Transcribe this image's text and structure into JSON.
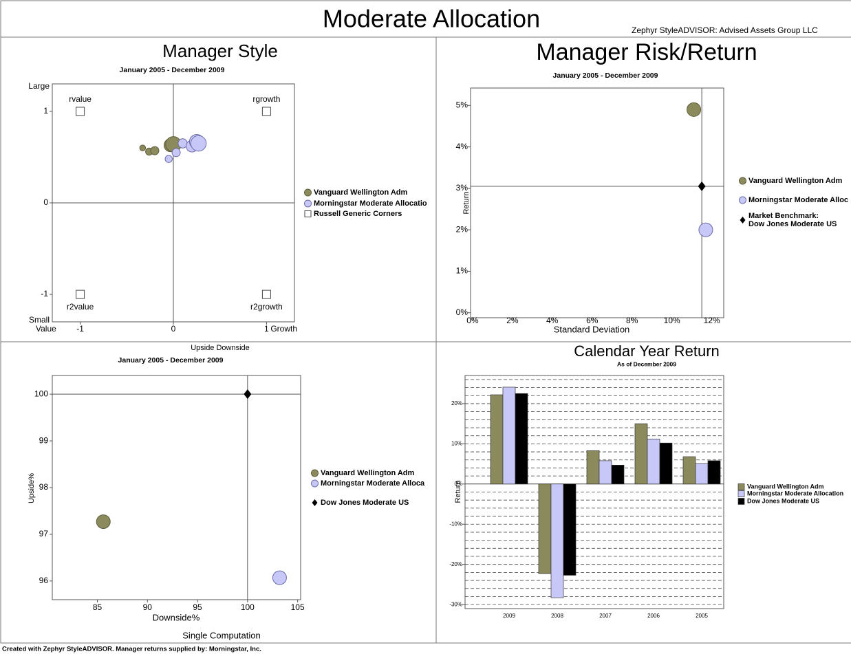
{
  "page": {
    "title": "Moderate Allocation",
    "subtitle": "Zephyr StyleADVISOR: Advised Assets Group LLC",
    "footer": "Created with Zephyr StyleADVISOR. Manager returns supplied by: Morningstar, Inc."
  },
  "chart_data": [
    {
      "type": "scatter",
      "title": "Manager Style",
      "subtitle": "January 2005 - December 2009",
      "xlim": [
        -1.3,
        1.3
      ],
      "ylim": [
        -1.3,
        1.3
      ],
      "xticks": [
        -1,
        0,
        1
      ],
      "yticks": [
        -1,
        0,
        1
      ],
      "origin_lines": true,
      "axis_labels": {
        "top": "Large",
        "bottom": "Small",
        "left": "Value",
        "right": "Growth"
      },
      "series": [
        {
          "name": "Vanguard Wellington Adm",
          "color": "#8a8a5c",
          "marker": "circle",
          "x": [
            -0.33,
            -0.26,
            -0.2,
            -0.03,
            0.0
          ],
          "values": [
            0.6,
            0.56,
            0.57,
            0.63,
            0.64
          ],
          "sizes": [
            2,
            3,
            4,
            10,
            14
          ]
        },
        {
          "name": "Morningstar Moderate Allocatio",
          "color": "#c8c8f8",
          "marker": "circle",
          "x": [
            -0.05,
            0.03,
            0.1,
            0.2,
            0.25,
            0.27
          ],
          "values": [
            0.48,
            0.55,
            0.65,
            0.62,
            0.67,
            0.65
          ],
          "sizes": [
            3,
            4,
            5,
            8,
            12,
            14
          ]
        },
        {
          "name": "Russell Generic Corners",
          "color": "#ffffff",
          "marker": "square",
          "x": [
            -1,
            1,
            -1,
            1
          ],
          "values": [
            1,
            1,
            -1,
            -1
          ],
          "labels": [
            "rvalue",
            "rgrowth",
            "r2value",
            "r2growth"
          ]
        }
      ]
    },
    {
      "type": "scatter",
      "title": "Manager Risk/Return",
      "subtitle": "January 2005 - December 2009",
      "xlabel": "Standard Deviation",
      "ylabel": "Return",
      "legend_heading": "Market Benchmark:",
      "xlim": [
        -0.1,
        12.6
      ],
      "ylim": [
        -0.12,
        5.42
      ],
      "xticks": [
        {
          "value": 0,
          "label": "0%"
        },
        {
          "value": 2,
          "label": "2%"
        },
        {
          "value": 4,
          "label": "4%"
        },
        {
          "value": 6,
          "label": "6%"
        },
        {
          "value": 8,
          "label": "8%"
        },
        {
          "value": 10,
          "label": "10%"
        },
        {
          "value": 12,
          "label": "12%"
        }
      ],
      "yticks": [
        {
          "value": 0,
          "label": "0%"
        },
        {
          "value": 1,
          "label": "1%"
        },
        {
          "value": 2,
          "label": "2%"
        },
        {
          "value": 3,
          "label": "3%"
        },
        {
          "value": 4,
          "label": "4%"
        },
        {
          "value": 5,
          "label": "5%"
        }
      ],
      "series": [
        {
          "name": "Vanguard Wellington Adm",
          "color": "#8a8a5c",
          "marker": "circle",
          "x": [
            11.1
          ],
          "values": [
            4.9
          ]
        },
        {
          "name": "Morningstar Moderate Alloc",
          "color": "#c8c8f8",
          "marker": "circle",
          "x": [
            11.7
          ],
          "values": [
            2.0
          ]
        },
        {
          "name": "Dow Jones Moderate US",
          "color": "#000000",
          "marker": "diamond",
          "crosshair": true,
          "x": [
            11.5
          ],
          "values": [
            3.05
          ]
        }
      ]
    },
    {
      "type": "scatter",
      "title": "Upside Downside",
      "subtitle": "January 2005 - December 2009",
      "xlabel": "Downside%",
      "ylabel": "Upside%",
      "note": "Single Computation",
      "xlim": [
        80.5,
        105.3
      ],
      "ylim": [
        95.6,
        100.4
      ],
      "xticks": [
        85,
        90,
        95,
        100,
        105
      ],
      "yticks": [
        96,
        97,
        98,
        99,
        100
      ],
      "series": [
        {
          "name": "Vanguard Wellington Adm",
          "color": "#8a8a5c",
          "marker": "circle",
          "x": [
            85.6
          ],
          "values": [
            97.27
          ]
        },
        {
          "name": "Morningstar Moderate Alloca",
          "color": "#c8c8f8",
          "marker": "circle",
          "x": [
            103.2
          ],
          "values": [
            96.07
          ]
        },
        {
          "name": "Dow Jones Moderate US",
          "color": "#000000",
          "marker": "diamond",
          "crosshair": true,
          "x": [
            100
          ],
          "values": [
            100
          ]
        }
      ]
    },
    {
      "type": "bar",
      "title": "Calendar Year Return",
      "subtitle": "As of December 2009",
      "ylabel": "Return",
      "categories": [
        "2009",
        "2008",
        "2007",
        "2006",
        "2005"
      ],
      "ylim": [
        -31,
        27
      ],
      "yticks": [
        {
          "value": -30,
          "label": "-30%"
        },
        {
          "value": -20,
          "label": "-20%"
        },
        {
          "value": -10,
          "label": "-10%"
        },
        {
          "value": 0,
          "label": "0%"
        },
        {
          "value": 10,
          "label": "10%"
        },
        {
          "value": 20,
          "label": "20%"
        }
      ],
      "minor_yticks": [
        -30,
        -28,
        -26,
        -24,
        -22,
        -20,
        -18,
        -16,
        -14,
        -12,
        -10,
        -8,
        -6,
        -4,
        -2,
        2,
        4,
        6,
        8,
        10,
        12,
        14,
        16,
        18,
        20,
        22,
        24,
        26
      ],
      "series": [
        {
          "name": "Vanguard Wellington Adm",
          "color": "#8a8a5c",
          "values": [
            22.2,
            -22.3,
            8.3,
            15.0,
            6.8
          ]
        },
        {
          "name": "Morningstar Moderate Allocation",
          "color": "#c8c8f8",
          "values": [
            24.1,
            -28.3,
            5.8,
            11.2,
            5.1
          ]
        },
        {
          "name": "Dow Jones Moderate US",
          "color": "#000000",
          "values": [
            22.5,
            -22.7,
            4.7,
            10.2,
            5.8
          ]
        }
      ]
    }
  ]
}
